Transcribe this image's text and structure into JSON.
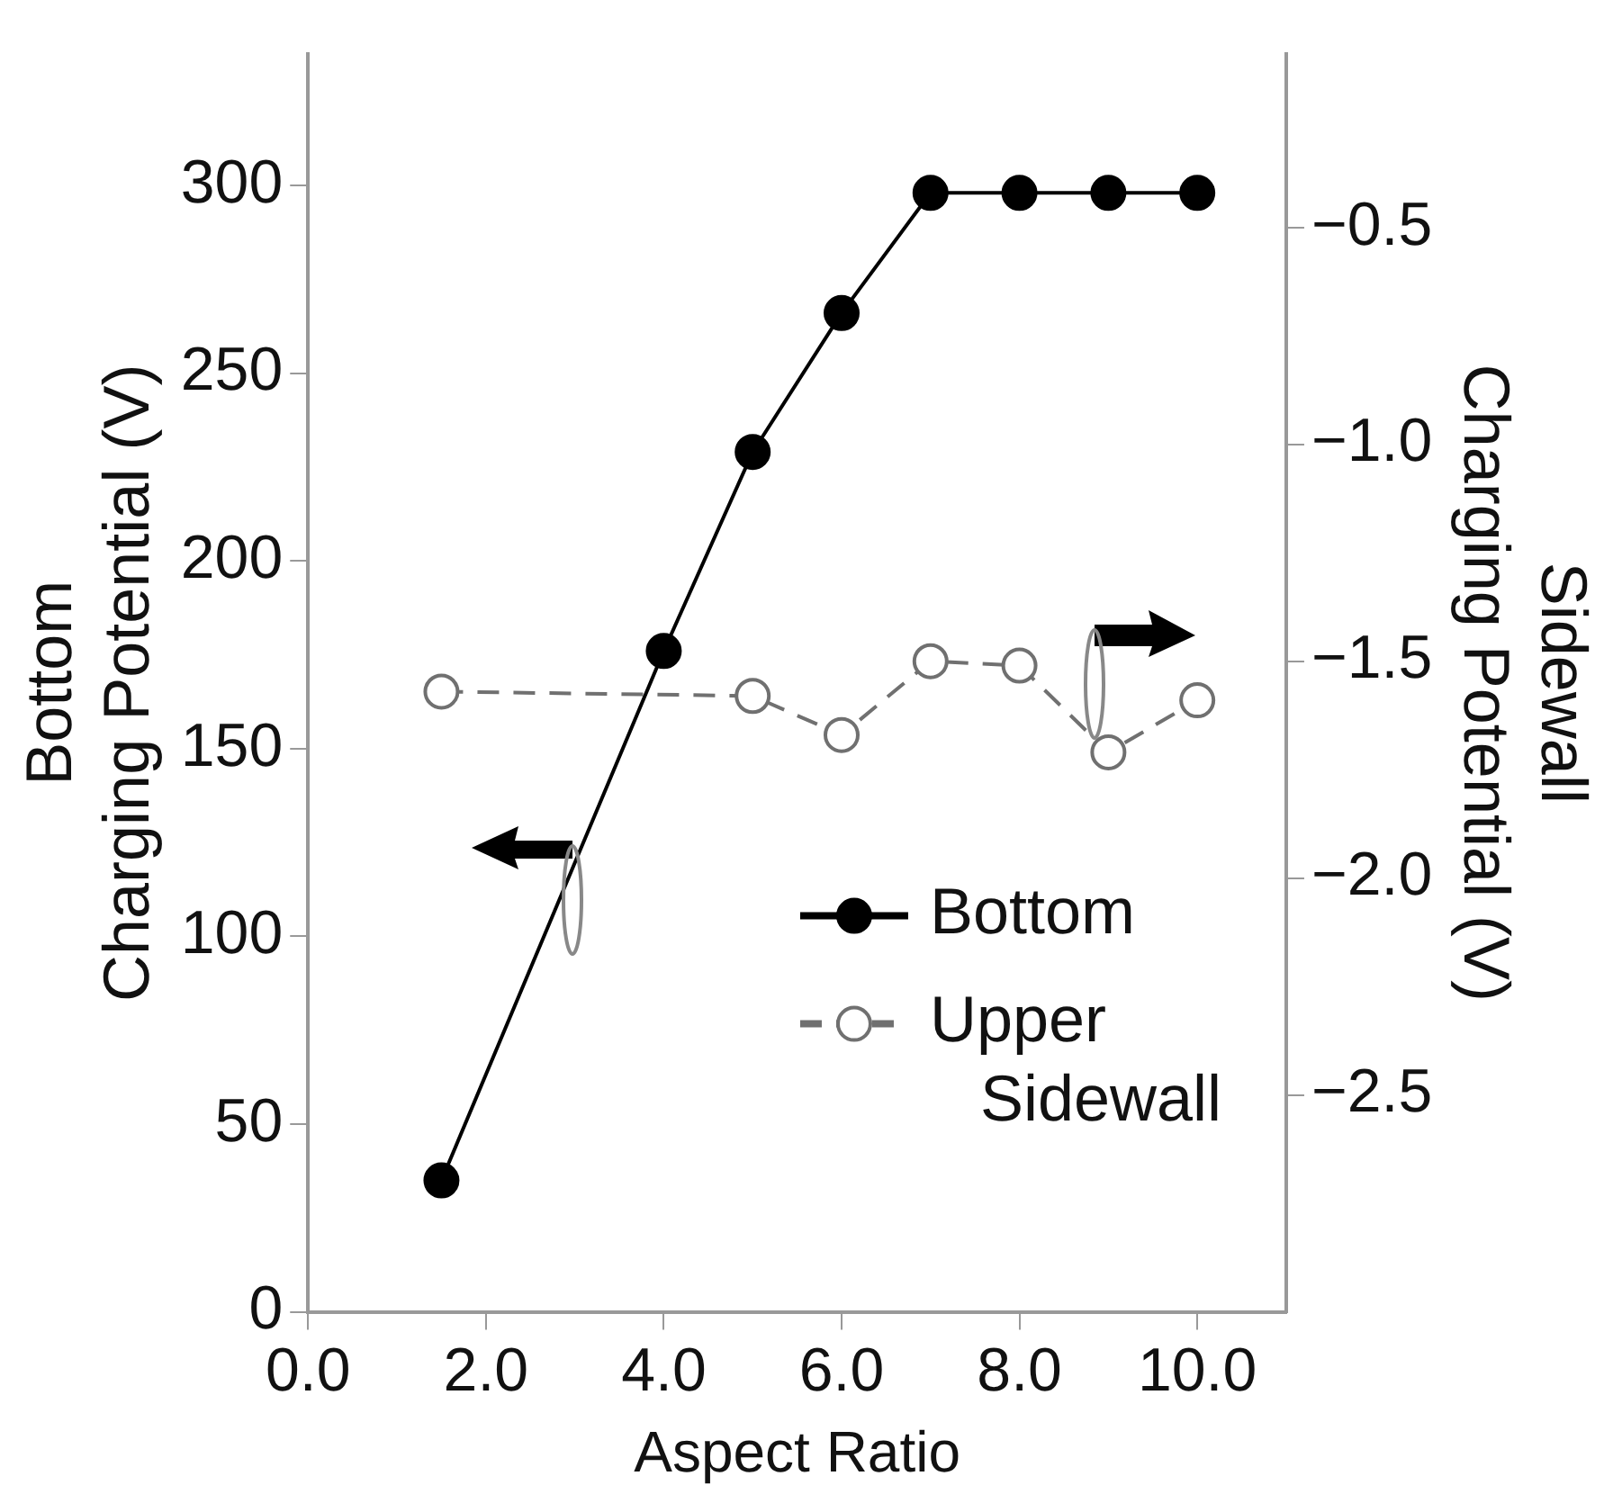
{
  "chart_data": {
    "type": "line",
    "xlabel": "Aspect Ratio",
    "ylabel": "Bottom Charging Potential (V)",
    "y2label": "Sidewall Charging Potential (V)",
    "xlim": [
      0,
      11
    ],
    "xticks": [
      {
        "value": 0,
        "label": "0.0"
      },
      {
        "value": 2,
        "label": "2.0"
      },
      {
        "value": 4,
        "label": "4.0"
      },
      {
        "value": 6,
        "label": "6.0"
      },
      {
        "value": 8,
        "label": "8.0"
      },
      {
        "value": 10,
        "label": "10.0"
      }
    ],
    "ylim": [
      0,
      335
    ],
    "yticks": [
      0,
      50,
      100,
      150,
      200,
      250,
      300
    ],
    "y2lim": [
      -3.0,
      -0.1
    ],
    "y2ticks": [
      {
        "value": -2.5,
        "label": "−2.5"
      },
      {
        "value": -2,
        "label": "−2.0"
      },
      {
        "value": -1.5,
        "label": "−1.5"
      },
      {
        "value": -1,
        "label": "−1.0"
      },
      {
        "value": -0.5,
        "label": "−0.5"
      }
    ],
    "grid": false,
    "legend": "bottom right",
    "marker": "circle",
    "series": [
      {
        "name": "Bottom",
        "color": "#000000",
        "line_style": "solid",
        "x": [
          1.5,
          4,
          5,
          6,
          7,
          8,
          9,
          10
        ],
        "values": [
          35,
          176,
          229,
          266,
          298,
          298,
          298,
          298
        ]
      },
      {
        "name": "Upper Sidewall",
        "color": "#707070",
        "line_style": "dashed",
        "axis": "y2",
        "x": [
          1.5,
          4,
          5,
          6,
          7,
          8,
          9,
          10
        ],
        "values": [
          -1.57,
          null,
          -1.58,
          -1.67,
          -1.5,
          -1.51,
          -1.71,
          -1.59
        ]
      }
    ]
  }
}
